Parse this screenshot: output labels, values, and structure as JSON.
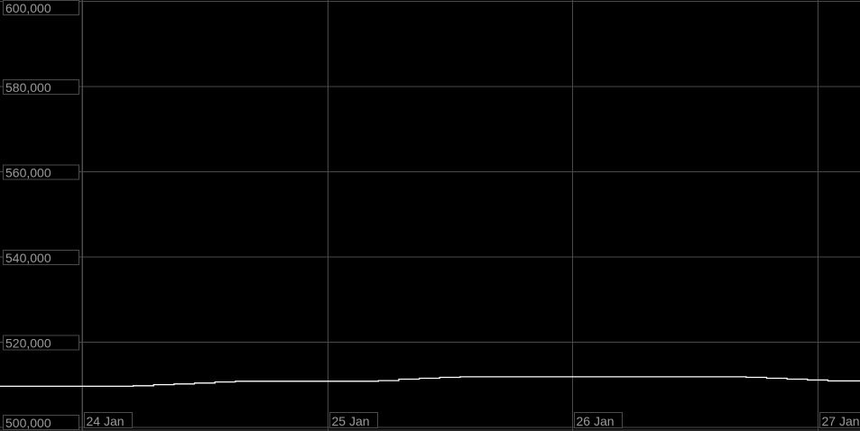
{
  "chart_data": {
    "type": "line",
    "title": "",
    "xlabel": "",
    "ylabel": "",
    "ylim": [
      500000,
      600000
    ],
    "y_ticks": [
      "500,000",
      "520,000",
      "540,000",
      "560,000",
      "580,000",
      "600,000"
    ],
    "y_tick_values": [
      500000,
      520000,
      540000,
      560000,
      580000,
      600000
    ],
    "x_ticks": [
      "24 Jan",
      "25 Jan",
      "26 Jan",
      "27 Jan"
    ],
    "xlim": [
      "23 Jan 16:00",
      "27 Jan 04:00"
    ],
    "grid": true,
    "line_style": "step",
    "colors": {
      "background": "#000000",
      "line": "#ffffff",
      "grid": "#4a4a4a",
      "label": "#9a9a9a"
    },
    "series": [
      {
        "points": [
          {
            "t": "23 Jan 16:00",
            "v": 509650
          },
          {
            "t": "24 Jan 05:00",
            "v": 509780
          },
          {
            "t": "24 Jan 07:00",
            "v": 510030
          },
          {
            "t": "24 Jan 09:00",
            "v": 510200
          },
          {
            "t": "24 Jan 11:00",
            "v": 510410
          },
          {
            "t": "24 Jan 13:00",
            "v": 510660
          },
          {
            "t": "24 Jan 15:00",
            "v": 510830
          },
          {
            "t": "25 Jan 05:00",
            "v": 510980
          },
          {
            "t": "25 Jan 07:00",
            "v": 511330
          },
          {
            "t": "25 Jan 09:00",
            "v": 511540
          },
          {
            "t": "25 Jan 11:00",
            "v": 511750
          },
          {
            "t": "25 Jan 13:00",
            "v": 511880
          },
          {
            "t": "26 Jan 17:00",
            "v": 511750
          },
          {
            "t": "26 Jan 19:00",
            "v": 511540
          },
          {
            "t": "26 Jan 21:00",
            "v": 511330
          },
          {
            "t": "26 Jan 23:00",
            "v": 511120
          },
          {
            "t": "27 Jan 01:00",
            "v": 510910
          },
          {
            "t": "27 Jan 04:00",
            "v": 510910
          }
        ]
      }
    ]
  }
}
